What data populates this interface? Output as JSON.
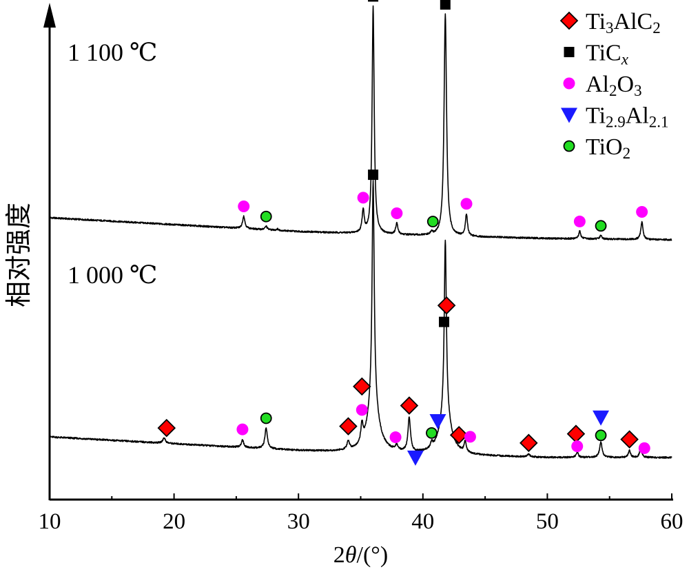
{
  "chart_data": {
    "type": "line",
    "ylabel": "相对强度",
    "xlabel": {
      "pre": "2",
      "theta": "θ",
      "post": "/(°)"
    },
    "xlim": [
      10,
      60
    ],
    "xticks": [
      10,
      20,
      30,
      40,
      50,
      60
    ],
    "y_tick_labels": false,
    "legend_position": "top-right",
    "legend": [
      {
        "marker": "diamond",
        "color": "#ff0000",
        "parts": [
          [
            "Ti",
            ""
          ],
          [
            "3",
            "sub"
          ],
          [
            "AlC",
            ""
          ],
          [
            "2",
            "sub"
          ]
        ]
      },
      {
        "marker": "square",
        "color": "#000000",
        "parts": [
          [
            "TiC",
            ""
          ],
          [
            "x",
            "subi"
          ]
        ]
      },
      {
        "marker": "circle",
        "color": "#ff00ff",
        "parts": [
          [
            "Al",
            ""
          ],
          [
            "2",
            "sub"
          ],
          [
            "O",
            ""
          ],
          [
            "3",
            "sub"
          ]
        ]
      },
      {
        "marker": "triangle-down",
        "color": "#1a1aff",
        "parts": [
          [
            "Ti",
            ""
          ],
          [
            "2.9",
            "sub"
          ],
          [
            "Al",
            ""
          ],
          [
            "2.1",
            "sub"
          ]
        ]
      },
      {
        "marker": "circle-outlined",
        "color": "#22dd22",
        "parts": [
          [
            "TiO",
            ""
          ],
          [
            "2",
            "sub"
          ]
        ]
      }
    ],
    "series": [
      {
        "name": "1 100 ℃",
        "baseline": [
          [
            10,
            36
          ],
          [
            20,
            26
          ],
          [
            30,
            16
          ],
          [
            40,
            10
          ],
          [
            50,
            6
          ],
          [
            60,
            4
          ]
        ],
        "peaks": [
          {
            "x": 25.6,
            "h": 18,
            "w": 0.11
          },
          {
            "x": 27.4,
            "h": 5,
            "w": 0.1
          },
          {
            "x": 28.3,
            "h": 2,
            "w": 0.1
          },
          {
            "x": 35.2,
            "h": 33,
            "w": 0.1
          },
          {
            "x": 36.0,
            "h": 330,
            "w": 0.1
          },
          {
            "x": 37.9,
            "h": 16,
            "w": 0.1
          },
          {
            "x": 40.7,
            "h": 4,
            "w": 0.1
          },
          {
            "x": 41.8,
            "h": 322,
            "w": 0.12
          },
          {
            "x": 43.5,
            "h": 32,
            "w": 0.1
          },
          {
            "x": 52.6,
            "h": 11,
            "w": 0.1
          },
          {
            "x": 54.3,
            "h": 5,
            "w": 0.1
          },
          {
            "x": 57.6,
            "h": 26,
            "w": 0.1
          }
        ],
        "markers": [
          {
            "x": 25.6,
            "type": "al2o3"
          },
          {
            "x": 27.4,
            "type": "tio2"
          },
          {
            "x": 35.2,
            "type": "al2o3"
          },
          {
            "x": 36.0,
            "type": "ticx"
          },
          {
            "x": 37.9,
            "type": "al2o3"
          },
          {
            "x": 40.8,
            "type": "tio2"
          },
          {
            "x": 41.8,
            "type": "ticx"
          },
          {
            "x": 43.5,
            "type": "al2o3"
          },
          {
            "x": 52.6,
            "type": "al2o3"
          },
          {
            "x": 54.3,
            "type": "tio2"
          },
          {
            "x": 57.6,
            "type": "al2o3"
          }
        ]
      },
      {
        "name": "1 000 ℃",
        "baseline": [
          [
            10,
            34
          ],
          [
            20,
            24
          ],
          [
            30,
            14
          ],
          [
            40,
            8
          ],
          [
            50,
            4
          ],
          [
            60,
            4
          ]
        ],
        "peaks": [
          {
            "x": 19.2,
            "h": 8,
            "w": 0.12
          },
          {
            "x": 25.5,
            "h": 11,
            "w": 0.11
          },
          {
            "x": 27.4,
            "h": 30,
            "w": 0.12
          },
          {
            "x": 34.0,
            "h": 12,
            "w": 0.11
          },
          {
            "x": 35.1,
            "h": 26,
            "w": 0.1
          },
          {
            "x": 36.0,
            "h": 320,
            "w": 0.1
          },
          {
            "x": 36.0,
            "h": 75,
            "w": 0.5
          },
          {
            "x": 37.9,
            "h": 8,
            "w": 0.1
          },
          {
            "x": 38.9,
            "h": 50,
            "w": 0.12
          },
          {
            "x": 40.7,
            "h": 8,
            "w": 0.1
          },
          {
            "x": 41.8,
            "h": 250,
            "w": 0.1
          },
          {
            "x": 41.8,
            "h": 62,
            "w": 0.5
          },
          {
            "x": 43.4,
            "h": 16,
            "w": 0.1
          },
          {
            "x": 48.5,
            "h": 4,
            "w": 0.12
          },
          {
            "x": 52.4,
            "h": 8,
            "w": 0.1
          },
          {
            "x": 54.3,
            "h": 22,
            "w": 0.12
          },
          {
            "x": 56.6,
            "h": 10,
            "w": 0.1
          },
          {
            "x": 57.5,
            "h": 14,
            "w": 0.1
          }
        ],
        "markers": [
          {
            "x": 19.4,
            "type": "ti3alc2",
            "lift": 20
          },
          {
            "x": 25.5,
            "type": "al2o3",
            "lift": 15
          },
          {
            "x": 27.4,
            "type": "tio2",
            "lift": 14
          },
          {
            "x": 34.0,
            "type": "ti3alc2",
            "lift": 20
          },
          {
            "x": 35.1,
            "type": "ti3alc2",
            "lift": 48
          },
          {
            "x": 35.1,
            "type": "al2o3",
            "lift": 14
          },
          {
            "x": 36.0,
            "type": "ticx",
            "lift": 8
          },
          {
            "x": 37.8,
            "type": "al2o3",
            "lift": 12
          },
          {
            "x": 38.9,
            "type": "ti3alc2",
            "lift": 16
          },
          {
            "x": 39.4,
            "type": "ti29al21",
            "lift": -12
          },
          {
            "x": 40.7,
            "type": "tio2",
            "lift": 10
          },
          {
            "x": 41.2,
            "type": "ti29al21",
            "lift": 16
          },
          {
            "x": 41.7,
            "type": "ticx",
            "lift": 8
          },
          {
            "x": 41.9,
            "type": "ti3alc2",
            "lift": 32
          },
          {
            "x": 42.9,
            "type": "ti3alc2",
            "lift": 16
          },
          {
            "x": 43.8,
            "type": "al2o3",
            "lift": 22
          },
          {
            "x": 48.5,
            "type": "ti3alc2",
            "lift": 16
          },
          {
            "x": 52.3,
            "type": "ti3alc2",
            "lift": 30
          },
          {
            "x": 52.4,
            "type": "al2o3",
            "lift": 8
          },
          {
            "x": 54.3,
            "type": "ti29al21",
            "lift": 36
          },
          {
            "x": 54.3,
            "type": "tio2",
            "lift": 10
          },
          {
            "x": 56.6,
            "type": "ti3alc2",
            "lift": 16
          },
          {
            "x": 57.8,
            "type": "al2o3",
            "lift": 12
          }
        ]
      }
    ]
  }
}
